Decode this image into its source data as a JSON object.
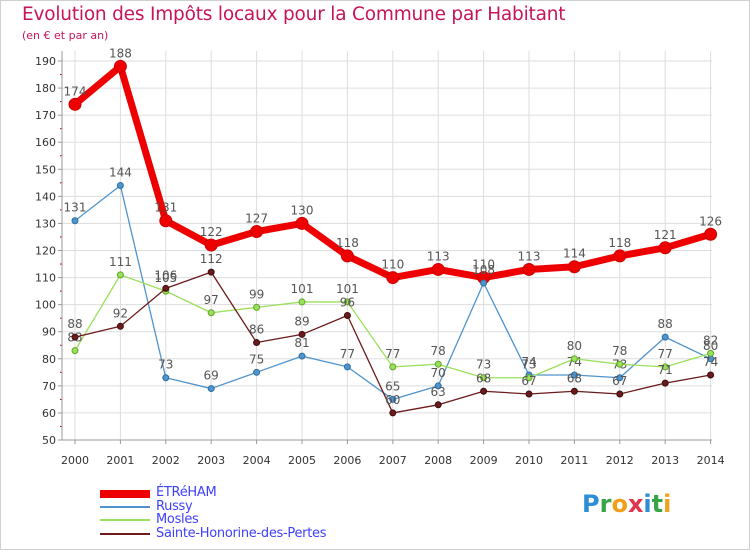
{
  "chart_data": {
    "type": "line",
    "title": "Evolution des Impôts locaux pour la Commune par Habitant",
    "subtitle": "(en € et par an)",
    "x": [
      "2000",
      "2001",
      "2002",
      "2003",
      "2004",
      "2005",
      "2006",
      "2007",
      "2008",
      "2009",
      "2010",
      "2011",
      "2012",
      "2013",
      "2014"
    ],
    "yticks": [
      50,
      60,
      70,
      80,
      90,
      100,
      110,
      120,
      130,
      140,
      150,
      160,
      170,
      180,
      190
    ],
    "ylim": [
      50,
      190
    ],
    "grid": true,
    "legend_position": "bottom-left",
    "series": [
      {
        "name": "ÉTRéHAM",
        "color": "#ee0000",
        "values": [
          174,
          188,
          131,
          122,
          127,
          130,
          118,
          110,
          113,
          110,
          113,
          114,
          118,
          121,
          126
        ]
      },
      {
        "name": "Russy",
        "color": "#4f94cd",
        "values": [
          131,
          144,
          73,
          69,
          75,
          81,
          77,
          65,
          70,
          108,
          74,
          74,
          73,
          88,
          80
        ]
      },
      {
        "name": "Mosles",
        "color": "#9ae05a",
        "values": [
          83,
          111,
          105,
          97,
          99,
          101,
          101,
          77,
          78,
          73,
          73,
          80,
          78,
          77,
          82
        ]
      },
      {
        "name": "Sainte-Honorine-des-Pertes",
        "color": "#6b1b1b",
        "values": [
          88,
          92,
          106,
          112,
          86,
          89,
          96,
          60,
          63,
          68,
          67,
          68,
          67,
          71,
          74
        ]
      }
    ]
  },
  "brand": {
    "letters": [
      "P",
      "r",
      "o",
      "x",
      "i",
      "t",
      "i"
    ]
  }
}
